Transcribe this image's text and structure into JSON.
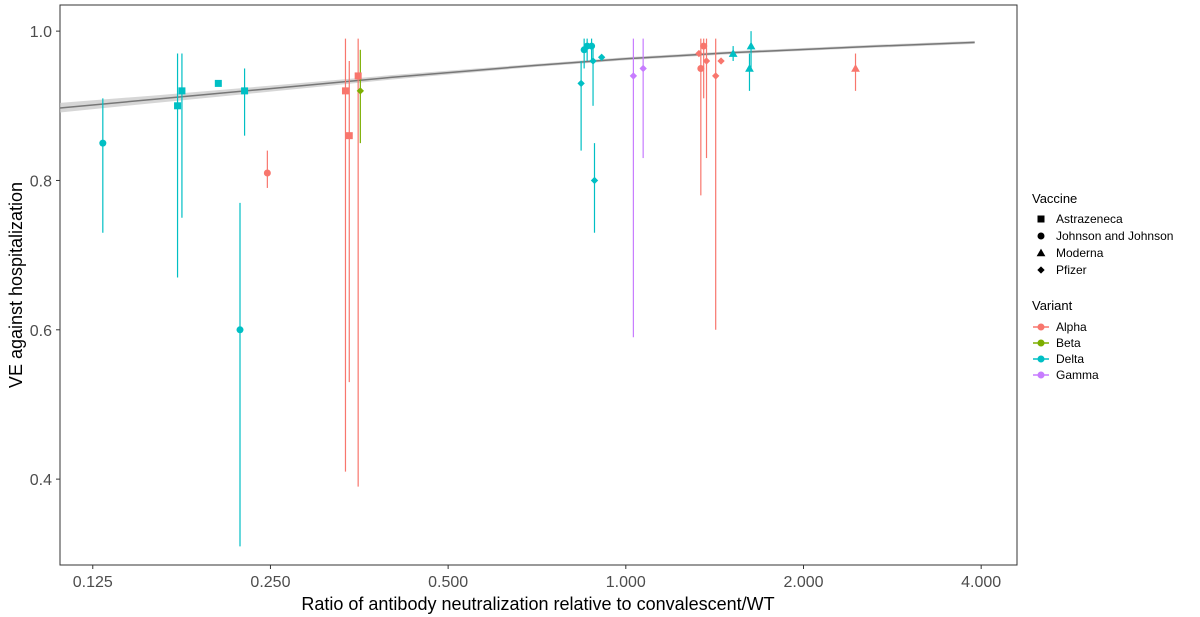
{
  "chart_data": {
    "type": "scatter",
    "title": "",
    "xlabel": "Ratio of antibody neutralization relative to convalescent/WT",
    "ylabel": "VE against hospitalization",
    "x_scale": "log2",
    "xlim": [
      0.11,
      4.6
    ],
    "ylim": [
      0.285,
      1.035
    ],
    "x_ticks": [
      {
        "value": 0.125,
        "label": "0.125"
      },
      {
        "value": 0.25,
        "label": "0.250"
      },
      {
        "value": 0.5,
        "label": "0.500"
      },
      {
        "value": 1.0,
        "label": "1.000"
      },
      {
        "value": 2.0,
        "label": "2.000"
      },
      {
        "value": 4.0,
        "label": "4.000"
      }
    ],
    "y_ticks": [
      {
        "value": 0.4,
        "label": "0.4"
      },
      {
        "value": 0.6,
        "label": "0.6"
      },
      {
        "value": 0.8,
        "label": "0.8"
      },
      {
        "value": 1.0,
        "label": "1.0"
      }
    ],
    "grid": false,
    "legend_position": "right",
    "legend_vaccine": {
      "title": "Vaccine",
      "items": [
        {
          "label": "Astrazeneca",
          "shape": "square"
        },
        {
          "label": "Johnson and Johnson",
          "shape": "circle"
        },
        {
          "label": "Moderna",
          "shape": "triangle"
        },
        {
          "label": "Pfizer",
          "shape": "diamond"
        }
      ]
    },
    "legend_variant": {
      "title": "Variant",
      "items": [
        {
          "label": "Alpha",
          "color": "#F8766D"
        },
        {
          "label": "Beta",
          "color": "#7CAE00"
        },
        {
          "label": "Delta",
          "color": "#00BFC4"
        },
        {
          "label": "Gamma",
          "color": "#C77CFF"
        }
      ]
    },
    "fit": {
      "line_color": "#777777",
      "band_color": "#c8c8c8",
      "points": [
        {
          "x": 0.11,
          "y": 0.897,
          "lo": 0.891,
          "hi": 0.904
        },
        {
          "x": 0.16,
          "y": 0.909,
          "lo": 0.904,
          "hi": 0.914
        },
        {
          "x": 0.25,
          "y": 0.923,
          "lo": 0.919,
          "hi": 0.927
        },
        {
          "x": 0.4,
          "y": 0.938,
          "lo": 0.935,
          "hi": 0.941
        },
        {
          "x": 0.7,
          "y": 0.954,
          "lo": 0.952,
          "hi": 0.956
        },
        {
          "x": 1.0,
          "y": 0.963,
          "lo": 0.961,
          "hi": 0.965
        },
        {
          "x": 1.5,
          "y": 0.971,
          "lo": 0.969,
          "hi": 0.973
        },
        {
          "x": 2.5,
          "y": 0.979,
          "lo": 0.977,
          "hi": 0.981
        },
        {
          "x": 3.9,
          "y": 0.985,
          "lo": 0.983,
          "hi": 0.987
        }
      ]
    },
    "points": [
      {
        "x": 0.13,
        "y": 0.85,
        "lo": 0.73,
        "hi": 0.91,
        "vaccine": "Johnson and Johnson",
        "variant": "Delta"
      },
      {
        "x": 0.174,
        "y": 0.9,
        "lo": 0.67,
        "hi": 0.97,
        "vaccine": "Astrazeneca",
        "variant": "Delta"
      },
      {
        "x": 0.177,
        "y": 0.92,
        "lo": 0.75,
        "hi": 0.97,
        "vaccine": "Astrazeneca",
        "variant": "Delta"
      },
      {
        "x": 0.204,
        "y": 0.93,
        "lo": 0.93,
        "hi": 0.93,
        "vaccine": "Astrazeneca",
        "variant": "Delta"
      },
      {
        "x": 0.222,
        "y": 0.6,
        "lo": 0.31,
        "hi": 0.77,
        "vaccine": "Johnson and Johnson",
        "variant": "Delta"
      },
      {
        "x": 0.226,
        "y": 0.92,
        "lo": 0.86,
        "hi": 0.95,
        "vaccine": "Astrazeneca",
        "variant": "Delta"
      },
      {
        "x": 0.247,
        "y": 0.81,
        "lo": 0.79,
        "hi": 0.84,
        "vaccine": "Johnson and Johnson",
        "variant": "Alpha"
      },
      {
        "x": 0.335,
        "y": 0.92,
        "lo": 0.41,
        "hi": 0.99,
        "vaccine": "Astrazeneca",
        "variant": "Alpha"
      },
      {
        "x": 0.34,
        "y": 0.86,
        "lo": 0.53,
        "hi": 0.96,
        "vaccine": "Astrazeneca",
        "variant": "Alpha"
      },
      {
        "x": 0.352,
        "y": 0.94,
        "lo": 0.39,
        "hi": 0.99,
        "vaccine": "Astrazeneca",
        "variant": "Alpha"
      },
      {
        "x": 0.355,
        "y": 0.92,
        "lo": 0.85,
        "hi": 0.975,
        "vaccine": "Pfizer",
        "variant": "Beta"
      },
      {
        "x": 0.84,
        "y": 0.93,
        "lo": 0.84,
        "hi": 0.96,
        "vaccine": "Pfizer",
        "variant": "Delta"
      },
      {
        "x": 0.85,
        "y": 0.975,
        "lo": 0.95,
        "hi": 0.99,
        "vaccine": "Johnson and Johnson",
        "variant": "Delta"
      },
      {
        "x": 0.86,
        "y": 0.98,
        "lo": 0.96,
        "hi": 0.99,
        "vaccine": "Johnson and Johnson",
        "variant": "Delta"
      },
      {
        "x": 0.875,
        "y": 0.98,
        "lo": 0.96,
        "hi": 0.99,
        "vaccine": "Johnson and Johnson",
        "variant": "Delta"
      },
      {
        "x": 0.88,
        "y": 0.96,
        "lo": 0.9,
        "hi": 0.98,
        "vaccine": "Pfizer",
        "variant": "Delta"
      },
      {
        "x": 0.885,
        "y": 0.8,
        "lo": 0.73,
        "hi": 0.85,
        "vaccine": "Pfizer",
        "variant": "Delta"
      },
      {
        "x": 0.91,
        "y": 0.965,
        "lo": 0.965,
        "hi": 0.965,
        "vaccine": "Pfizer",
        "variant": "Delta"
      },
      {
        "x": 1.03,
        "y": 0.94,
        "lo": 0.59,
        "hi": 0.99,
        "vaccine": "Pfizer",
        "variant": "Gamma"
      },
      {
        "x": 1.07,
        "y": 0.95,
        "lo": 0.83,
        "hi": 0.99,
        "vaccine": "Pfizer",
        "variant": "Gamma"
      },
      {
        "x": 1.33,
        "y": 0.97,
        "lo": 0.97,
        "hi": 0.97,
        "vaccine": "Pfizer",
        "variant": "Alpha"
      },
      {
        "x": 1.34,
        "y": 0.95,
        "lo": 0.78,
        "hi": 0.99,
        "vaccine": "Johnson and Johnson",
        "variant": "Alpha"
      },
      {
        "x": 1.355,
        "y": 0.98,
        "lo": 0.91,
        "hi": 0.99,
        "vaccine": "Johnson and Johnson",
        "variant": "Alpha"
      },
      {
        "x": 1.37,
        "y": 0.96,
        "lo": 0.83,
        "hi": 0.99,
        "vaccine": "Pfizer",
        "variant": "Alpha"
      },
      {
        "x": 1.42,
        "y": 0.94,
        "lo": 0.6,
        "hi": 0.99,
        "vaccine": "Pfizer",
        "variant": "Alpha"
      },
      {
        "x": 1.45,
        "y": 0.96,
        "lo": 0.96,
        "hi": 0.96,
        "vaccine": "Pfizer",
        "variant": "Alpha"
      },
      {
        "x": 1.52,
        "y": 0.97,
        "lo": 0.96,
        "hi": 0.98,
        "vaccine": "Moderna",
        "variant": "Delta"
      },
      {
        "x": 1.63,
        "y": 0.98,
        "lo": 0.95,
        "hi": 1.0,
        "vaccine": "Moderna",
        "variant": "Delta"
      },
      {
        "x": 1.62,
        "y": 0.95,
        "lo": 0.92,
        "hi": 0.97,
        "vaccine": "Moderna",
        "variant": "Delta"
      },
      {
        "x": 2.45,
        "y": 0.95,
        "lo": 0.92,
        "hi": 0.97,
        "vaccine": "Moderna",
        "variant": "Alpha"
      }
    ]
  }
}
